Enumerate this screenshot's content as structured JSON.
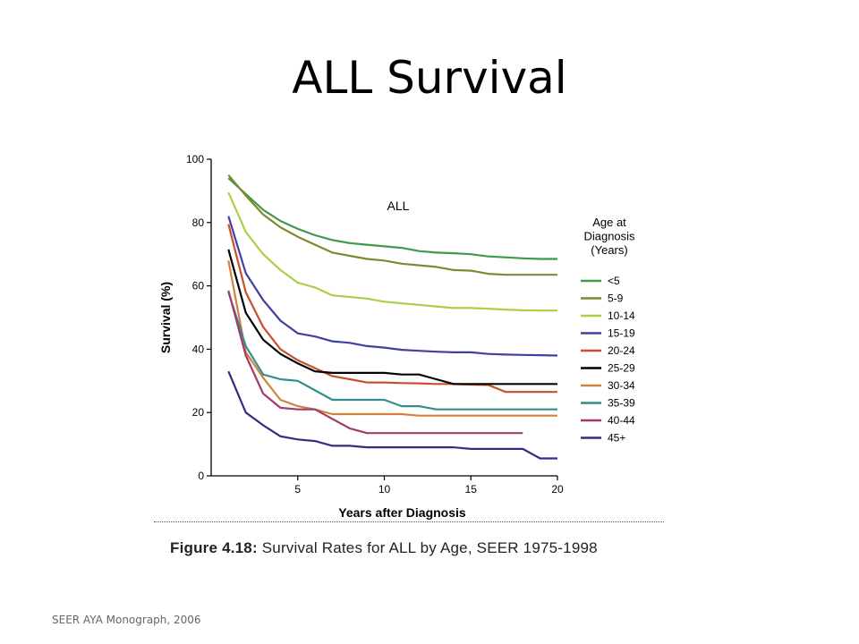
{
  "slide": {
    "title": "ALL Survival",
    "caption_prefix": "Figure 4.18:",
    "caption_text": " Survival Rates for ALL by Age, SEER 1975-1998",
    "source": "SEER AYA Monograph, 2006"
  },
  "chart_data": {
    "type": "line",
    "title": "ALL",
    "xlabel": "Years after Diagnosis",
    "ylabel": "Survival (%)",
    "xlim": [
      0,
      20
    ],
    "ylim": [
      0,
      100
    ],
    "x_ticks": [
      5,
      10,
      15,
      20
    ],
    "y_ticks": [
      0,
      20,
      40,
      60,
      80,
      100
    ],
    "grid": false,
    "legend_title": [
      "Age at",
      "Diagnosis",
      "(Years)"
    ],
    "legend_position": "right",
    "series": [
      {
        "name": "<5",
        "color": "#3f9a4a",
        "points": [
          [
            1,
            94
          ],
          [
            2,
            89
          ],
          [
            3,
            84
          ],
          [
            4,
            80.5
          ],
          [
            5,
            78
          ],
          [
            6,
            76
          ],
          [
            7,
            74.5
          ],
          [
            8,
            73.5
          ],
          [
            9,
            73
          ],
          [
            10,
            72.5
          ],
          [
            11,
            72
          ],
          [
            12,
            71
          ],
          [
            13,
            70.5
          ],
          [
            14,
            70.3
          ],
          [
            15,
            70
          ],
          [
            16,
            69.3
          ],
          [
            17,
            69
          ],
          [
            18,
            68.7
          ],
          [
            19,
            68.5
          ],
          [
            20,
            68.5
          ]
        ]
      },
      {
        "name": "5-9",
        "color": "#7e8a2f",
        "points": [
          [
            1,
            95
          ],
          [
            2,
            88.5
          ],
          [
            3,
            82.5
          ],
          [
            4,
            78.5
          ],
          [
            5,
            75.5
          ],
          [
            6,
            73
          ],
          [
            7,
            70.5
          ],
          [
            8,
            69.5
          ],
          [
            9,
            68.5
          ],
          [
            10,
            68
          ],
          [
            11,
            67
          ],
          [
            12,
            66.5
          ],
          [
            13,
            66
          ],
          [
            14,
            65
          ],
          [
            15,
            64.8
          ],
          [
            16,
            63.8
          ],
          [
            17,
            63.5
          ],
          [
            18,
            63.5
          ],
          [
            19,
            63.5
          ],
          [
            20,
            63.5
          ]
        ]
      },
      {
        "name": "10-14",
        "color": "#a9d046",
        "points": [
          [
            1,
            89.5
          ],
          [
            2,
            77
          ],
          [
            3,
            70
          ],
          [
            4,
            65
          ],
          [
            5,
            61
          ],
          [
            6,
            59.5
          ],
          [
            7,
            57
          ],
          [
            8,
            56.5
          ],
          [
            9,
            56
          ],
          [
            10,
            55
          ],
          [
            11,
            54.5
          ],
          [
            12,
            54
          ],
          [
            13,
            53.5
          ],
          [
            14,
            53
          ],
          [
            15,
            53
          ],
          [
            16,
            52.8
          ],
          [
            17,
            52.5
          ],
          [
            18,
            52.3
          ],
          [
            19,
            52.2
          ],
          [
            20,
            52.2
          ]
        ]
      },
      {
        "name": "15-19",
        "color": "#3f41a0",
        "points": [
          [
            1,
            82
          ],
          [
            2,
            64
          ],
          [
            3,
            55.5
          ],
          [
            4,
            49
          ],
          [
            5,
            45
          ],
          [
            6,
            44
          ],
          [
            7,
            42.5
          ],
          [
            8,
            42
          ],
          [
            9,
            41
          ],
          [
            10,
            40.5
          ],
          [
            11,
            39.8
          ],
          [
            12,
            39.5
          ],
          [
            13,
            39.2
          ],
          [
            14,
            39
          ],
          [
            15,
            39
          ],
          [
            16,
            38.5
          ],
          [
            17,
            38.3
          ],
          [
            18,
            38.2
          ],
          [
            19,
            38.1
          ],
          [
            20,
            38
          ]
        ]
      },
      {
        "name": "20-24",
        "color": "#c8502a",
        "points": [
          [
            1,
            79.5
          ],
          [
            2,
            58
          ],
          [
            3,
            47
          ],
          [
            4,
            40
          ],
          [
            5,
            36.5
          ],
          [
            6,
            34
          ],
          [
            7,
            31.5
          ],
          [
            8,
            30.5
          ],
          [
            9,
            29.5
          ],
          [
            10,
            29.5
          ],
          [
            11,
            29.3
          ],
          [
            12,
            29.2
          ],
          [
            13,
            29
          ],
          [
            14,
            29
          ],
          [
            15,
            28.8
          ],
          [
            16,
            28.7
          ],
          [
            17,
            26.5
          ],
          [
            18,
            26.5
          ],
          [
            19,
            26.5
          ],
          [
            20,
            26.5
          ]
        ]
      },
      {
        "name": "25-29",
        "color": "#000000",
        "points": [
          [
            1,
            71.5
          ],
          [
            2,
            51.5
          ],
          [
            3,
            43
          ],
          [
            4,
            38.5
          ],
          [
            5,
            35.5
          ],
          [
            6,
            33
          ],
          [
            7,
            32.5
          ],
          [
            8,
            32.5
          ],
          [
            9,
            32.5
          ],
          [
            10,
            32.5
          ],
          [
            11,
            32
          ],
          [
            12,
            32
          ],
          [
            13,
            30.5
          ],
          [
            14,
            29
          ],
          [
            15,
            29
          ],
          [
            16,
            29
          ],
          [
            17,
            29
          ],
          [
            18,
            29
          ],
          [
            19,
            29
          ],
          [
            20,
            29
          ]
        ]
      },
      {
        "name": "30-34",
        "color": "#d2823a",
        "points": [
          [
            1,
            68
          ],
          [
            2,
            39
          ],
          [
            3,
            31
          ],
          [
            4,
            24
          ],
          [
            5,
            22
          ],
          [
            6,
            21
          ],
          [
            7,
            19.5
          ],
          [
            8,
            19.5
          ],
          [
            9,
            19.5
          ],
          [
            10,
            19.5
          ],
          [
            11,
            19.5
          ],
          [
            12,
            19
          ],
          [
            13,
            19
          ],
          [
            14,
            19
          ],
          [
            15,
            19
          ],
          [
            16,
            19
          ],
          [
            17,
            19
          ],
          [
            18,
            19
          ],
          [
            19,
            19
          ],
          [
            20,
            19
          ]
        ]
      },
      {
        "name": "35-39",
        "color": "#338e8c",
        "points": [
          [
            1,
            58
          ],
          [
            2,
            41
          ],
          [
            3,
            32
          ],
          [
            4,
            30.5
          ],
          [
            5,
            30
          ],
          [
            6,
            27
          ],
          [
            7,
            24
          ],
          [
            8,
            24
          ],
          [
            9,
            24
          ],
          [
            10,
            24
          ],
          [
            11,
            22
          ],
          [
            12,
            22
          ],
          [
            13,
            21
          ],
          [
            14,
            21
          ],
          [
            15,
            21
          ],
          [
            16,
            21
          ],
          [
            17,
            21
          ],
          [
            18,
            21
          ],
          [
            19,
            21
          ],
          [
            20,
            21
          ]
        ]
      },
      {
        "name": "40-44",
        "color": "#a23a6e",
        "points": [
          [
            1,
            58.5
          ],
          [
            2,
            38
          ],
          [
            3,
            26
          ],
          [
            4,
            21.5
          ],
          [
            5,
            21
          ],
          [
            6,
            21
          ],
          [
            7,
            18
          ],
          [
            8,
            15
          ],
          [
            9,
            13.5
          ],
          [
            10,
            13.5
          ],
          [
            11,
            13.5
          ],
          [
            12,
            13.5
          ],
          [
            13,
            13.5
          ],
          [
            14,
            13.5
          ],
          [
            15,
            13.5
          ],
          [
            16,
            13.5
          ],
          [
            17,
            13.5
          ],
          [
            18,
            13.5
          ]
        ]
      },
      {
        "name": "45+",
        "color": "#352b84",
        "points": [
          [
            1,
            33
          ],
          [
            2,
            20
          ],
          [
            3,
            16
          ],
          [
            4,
            12.5
          ],
          [
            5,
            11.5
          ],
          [
            6,
            11
          ],
          [
            7,
            9.5
          ],
          [
            8,
            9.5
          ],
          [
            9,
            9
          ],
          [
            10,
            9
          ],
          [
            11,
            9
          ],
          [
            12,
            9
          ],
          [
            13,
            9
          ],
          [
            14,
            9
          ],
          [
            15,
            8.5
          ],
          [
            16,
            8.5
          ],
          [
            17,
            8.5
          ],
          [
            18,
            8.5
          ],
          [
            19,
            5.5
          ],
          [
            20,
            5.5
          ]
        ]
      }
    ]
  }
}
